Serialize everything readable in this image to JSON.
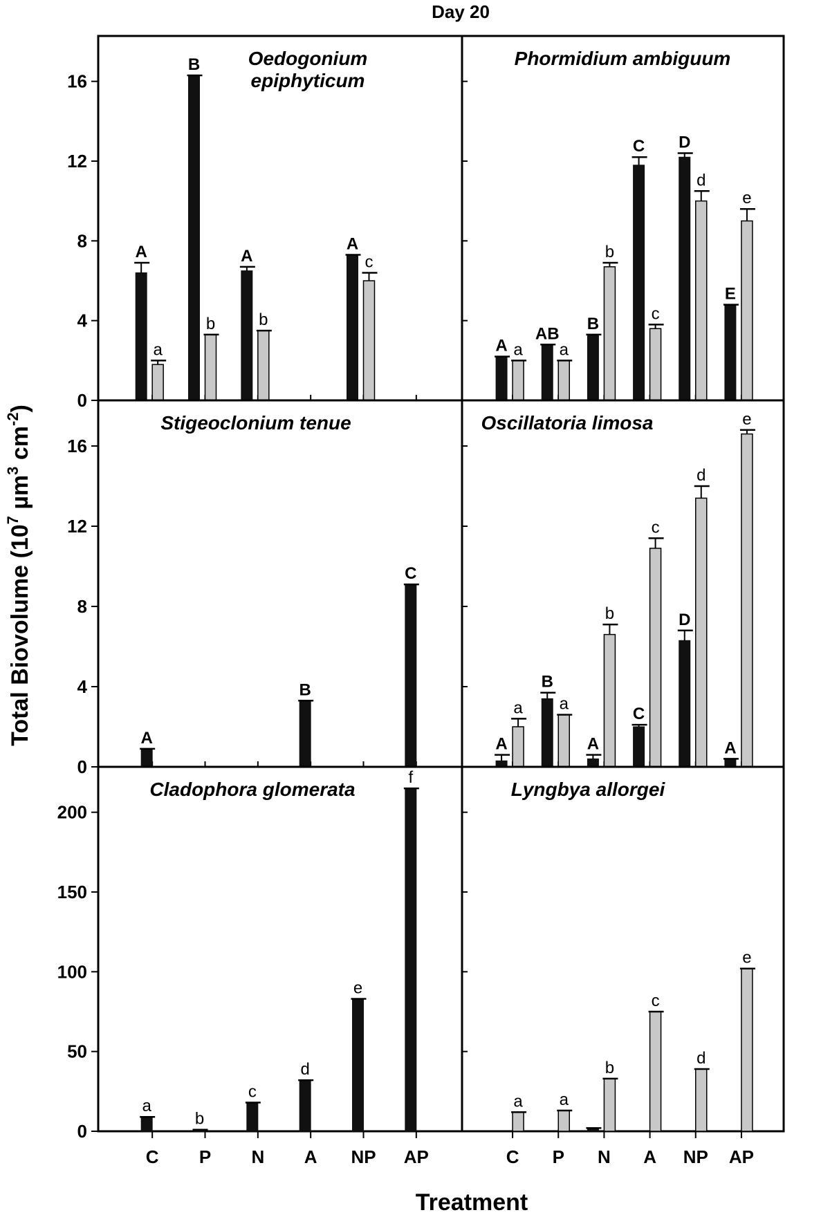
{
  "figure": {
    "title": "Day 20",
    "xlabel": "Treatment",
    "ylabel_parts": [
      "Total Biovolume (10",
      "7",
      " µm",
      "3",
      " cm",
      "-2",
      ")"
    ]
  },
  "chart_data": [
    {
      "type": "bar",
      "panel": "top-left",
      "title_lines": [
        "Oedogonium",
        "epiphyticum"
      ],
      "categories": [
        "C",
        "P",
        "N",
        "A",
        "NP",
        "AP"
      ],
      "ylim": [
        0,
        18
      ],
      "yticks": [
        0,
        4,
        8,
        12,
        16
      ],
      "series": [
        {
          "name": "black",
          "color": "#111111",
          "values": [
            6.4,
            16.3,
            6.5,
            null,
            7.3,
            null
          ],
          "errors": [
            0.5,
            0,
            0.2,
            null,
            0,
            null
          ],
          "letters": [
            "A",
            "B",
            "A",
            null,
            "A",
            null
          ]
        },
        {
          "name": "grey",
          "color": "#c8c8c8",
          "values": [
            1.8,
            3.3,
            3.5,
            null,
            6.0,
            null
          ],
          "errors": [
            0.2,
            0,
            0,
            null,
            0.4,
            null
          ],
          "letters": [
            "a",
            "b",
            "b",
            null,
            "c",
            null
          ]
        }
      ]
    },
    {
      "type": "bar",
      "panel": "top-right",
      "title_lines": [
        "Phormidium ambiguum"
      ],
      "categories": [
        "C",
        "P",
        "N",
        "A",
        "NP",
        "AP"
      ],
      "ylim": [
        0,
        18
      ],
      "yticks": [
        0,
        4,
        8,
        12,
        16
      ],
      "series": [
        {
          "name": "black",
          "color": "#111111",
          "values": [
            2.2,
            2.8,
            3.3,
            11.8,
            12.2,
            4.8
          ],
          "errors": [
            0,
            0,
            0,
            0.4,
            0.2,
            0
          ],
          "letters": [
            "A",
            "AB",
            "B",
            "C",
            "D",
            "E"
          ]
        },
        {
          "name": "grey",
          "color": "#c8c8c8",
          "values": [
            2.0,
            2.0,
            6.7,
            3.6,
            10.0,
            9.0
          ],
          "errors": [
            0,
            0,
            0.2,
            0.2,
            0.5,
            0.6
          ],
          "letters": [
            "a",
            "a",
            "b",
            "c",
            "d",
            "e"
          ]
        }
      ]
    },
    {
      "type": "bar",
      "panel": "mid-left",
      "title_lines": [
        "Stigeoclonium tenue"
      ],
      "categories": [
        "C",
        "P",
        "N",
        "A",
        "NP",
        "AP"
      ],
      "ylim": [
        0,
        18
      ],
      "yticks": [
        0,
        4,
        8,
        12,
        16
      ],
      "series": [
        {
          "name": "black",
          "color": "#111111",
          "values": [
            0.9,
            null,
            null,
            3.3,
            null,
            9.1
          ],
          "errors": [
            0,
            null,
            null,
            0,
            null,
            0
          ],
          "letters": [
            "A",
            null,
            null,
            "B",
            null,
            "C"
          ]
        }
      ]
    },
    {
      "type": "bar",
      "panel": "mid-right",
      "title_lines": [
        "Oscillatoria limosa"
      ],
      "categories": [
        "C",
        "P",
        "N",
        "A",
        "NP",
        "AP"
      ],
      "ylim": [
        0,
        18
      ],
      "yticks": [
        0,
        4,
        8,
        12,
        16
      ],
      "series": [
        {
          "name": "black",
          "color": "#111111",
          "values": [
            0.3,
            3.4,
            0.4,
            2.0,
            6.3,
            0.4
          ],
          "errors": [
            0.3,
            0.3,
            0.2,
            0.1,
            0.5,
            0
          ],
          "letters": [
            "A",
            "B",
            "A",
            "C",
            "D",
            "A"
          ]
        },
        {
          "name": "grey",
          "color": "#c8c8c8",
          "values": [
            2.0,
            2.6,
            6.6,
            10.9,
            13.4,
            16.6
          ],
          "errors": [
            0.4,
            0,
            0.5,
            0.5,
            0.6,
            0.2
          ],
          "letters": [
            "a",
            "a",
            "b",
            "c",
            "d",
            "e"
          ]
        }
      ]
    },
    {
      "type": "bar",
      "panel": "bottom-left",
      "title_lines": [
        "Cladophora glomerata"
      ],
      "categories": [
        "C",
        "P",
        "N",
        "A",
        "NP",
        "AP"
      ],
      "ylim": [
        0,
        225
      ],
      "yticks": [
        0,
        50,
        100,
        150,
        200
      ],
      "series": [
        {
          "name": "black",
          "color": "#111111",
          "values": [
            9,
            1,
            18,
            32,
            83,
            215
          ],
          "errors": [
            0,
            0,
            0,
            0,
            0,
            0
          ],
          "letters": [
            "a",
            "b",
            "c",
            "d",
            "e",
            "f"
          ]
        }
      ]
    },
    {
      "type": "bar",
      "panel": "bottom-right",
      "title_lines": [
        "Lyngbya allorgei"
      ],
      "categories": [
        "C",
        "P",
        "N",
        "A",
        "NP",
        "AP"
      ],
      "ylim": [
        0,
        225
      ],
      "yticks": [
        0,
        50,
        100,
        150,
        200
      ],
      "series": [
        {
          "name": "black",
          "color": "#111111",
          "values": [
            null,
            null,
            2,
            null,
            null,
            null
          ],
          "errors": [
            null,
            null,
            0,
            null,
            null,
            null
          ],
          "letters": [
            null,
            null,
            null,
            null,
            null,
            null
          ]
        },
        {
          "name": "grey",
          "color": "#c8c8c8",
          "values": [
            12,
            13,
            33,
            75,
            39,
            102
          ],
          "errors": [
            0,
            0,
            0,
            0,
            0,
            0
          ],
          "letters": [
            "a",
            "a",
            "b",
            "c",
            "d",
            "e"
          ]
        }
      ]
    }
  ]
}
